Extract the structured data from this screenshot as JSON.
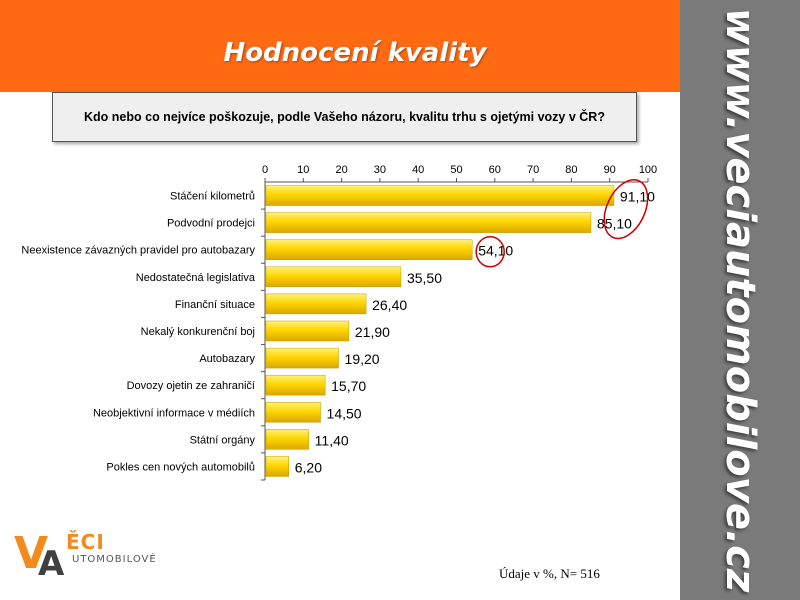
{
  "slide": {
    "title": "Hodnocení kvality",
    "side_text": "www.veciautomobilove.cz",
    "question": "Kdo nebo co nejvíce poškozuje, podle Vašeho názoru, kvalitu trhu s ojetými vozy v ČR?",
    "footnote": "Údaje v %, N= 516",
    "logo": {
      "v": "V",
      "a": "A",
      "eci": "ĚCI",
      "auto": "UTOMOBILOVÉ"
    },
    "colors": {
      "header": "#ff6a13",
      "sidebar": "#7a7a7a",
      "bar": "#ffd500",
      "highlight_circle": "#cc0000"
    }
  },
  "chart_data": {
    "type": "bar",
    "orientation": "horizontal",
    "categories": [
      "Stáčení kilometrů",
      "Podvodní prodejci",
      "Neexistence závazných pravidel pro autobazary",
      "Nedostatečná legislativa",
      "Finanční situace",
      "Nekalý konkurenční boj",
      "Autobazary",
      "Dovozy ojetin ze zahraničí",
      "Neobjektivní informace v médiích",
      "Státní orgány",
      "Pokles cen nových automobilů"
    ],
    "values": [
      91.1,
      85.1,
      54.1,
      35.5,
      26.4,
      21.9,
      19.2,
      15.7,
      14.5,
      11.4,
      6.2
    ],
    "value_labels": [
      "91,10",
      "85,10",
      "54,10",
      "35,50",
      "26,40",
      "21,90",
      "19,20",
      "15,70",
      "14,50",
      "11,40",
      "6,20"
    ],
    "xlim": [
      0,
      100
    ],
    "xticks": [
      0,
      10,
      20,
      30,
      40,
      50,
      60,
      70,
      80,
      90,
      100
    ],
    "x_axis_position": "top",
    "grid": false,
    "highlighted": [
      0,
      1,
      2
    ]
  }
}
